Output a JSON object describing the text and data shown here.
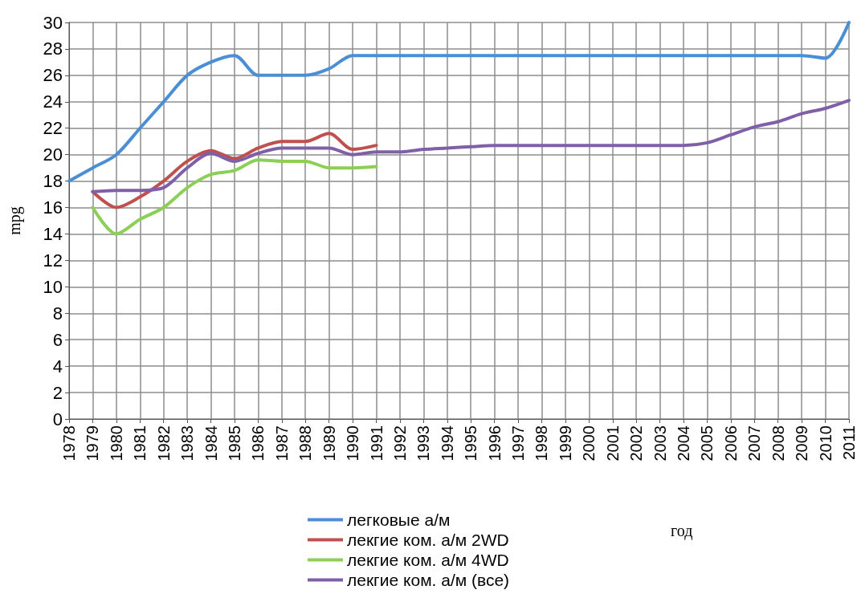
{
  "chart_data": {
    "type": "line",
    "xlabel": "год",
    "ylabel": "mpg",
    "categories": [
      "1978",
      "1979",
      "1980",
      "1981",
      "1982",
      "1983",
      "1984",
      "1985",
      "1986",
      "1987",
      "1988",
      "1989",
      "1990",
      "1991",
      "1992",
      "1993",
      "1994",
      "1995",
      "1996",
      "1997",
      "1998",
      "1999",
      "2000",
      "2001",
      "2002",
      "2003",
      "2004",
      "2005",
      "2006",
      "2007",
      "2008",
      "2009",
      "2010",
      "2011"
    ],
    "series": [
      {
        "name": "легковые а/м",
        "color": "#4a8fd6",
        "values": [
          18,
          19,
          20,
          22,
          24,
          26,
          27,
          27.5,
          26,
          26,
          26,
          26.5,
          27.5,
          27.5,
          27.5,
          27.5,
          27.5,
          27.5,
          27.5,
          27.5,
          27.5,
          27.5,
          27.5,
          27.5,
          27.5,
          27.5,
          27.5,
          27.5,
          27.5,
          27.5,
          27.5,
          27.5,
          27.3,
          30
        ]
      },
      {
        "name": "лекгие ком. а/м 2WD",
        "color": "#c0504d",
        "values": [
          null,
          17.2,
          16,
          16.8,
          18,
          19.5,
          20.3,
          19.7,
          20.5,
          21,
          21,
          21.6,
          20.4,
          20.7,
          null,
          null,
          null,
          null,
          null,
          null,
          null,
          null,
          null,
          null,
          null,
          null,
          null,
          null,
          null,
          null,
          null,
          null,
          null,
          null
        ]
      },
      {
        "name": "лекгие ком. а/м 4WD",
        "color": "#8ccf56",
        "values": [
          null,
          16,
          14,
          15.1,
          16,
          17.5,
          18.5,
          18.8,
          19.6,
          19.5,
          19.5,
          19,
          19,
          19.1,
          null,
          null,
          null,
          null,
          null,
          null,
          null,
          null,
          null,
          null,
          null,
          null,
          null,
          null,
          null,
          null,
          null,
          null,
          null,
          null
        ]
      },
      {
        "name": "лекгие ком. а/м (все)",
        "color": "#7f60a8",
        "values": [
          null,
          17.2,
          17.3,
          17.3,
          17.5,
          19,
          20.1,
          19.5,
          20.1,
          20.5,
          20.5,
          20.5,
          20,
          20.2,
          20.2,
          20.4,
          20.5,
          20.6,
          20.7,
          20.7,
          20.7,
          20.7,
          20.7,
          20.7,
          20.7,
          20.7,
          20.7,
          20.9,
          21.5,
          22.1,
          22.5,
          23.1,
          23.5,
          24.1
        ]
      }
    ],
    "ylim": [
      0,
      30
    ],
    "yticks": [
      0,
      2,
      4,
      6,
      8,
      10,
      12,
      14,
      16,
      18,
      20,
      22,
      24,
      26,
      28,
      30
    ],
    "grid": true,
    "legend": "bottom",
    "marker": "none",
    "line_style": "solid"
  }
}
